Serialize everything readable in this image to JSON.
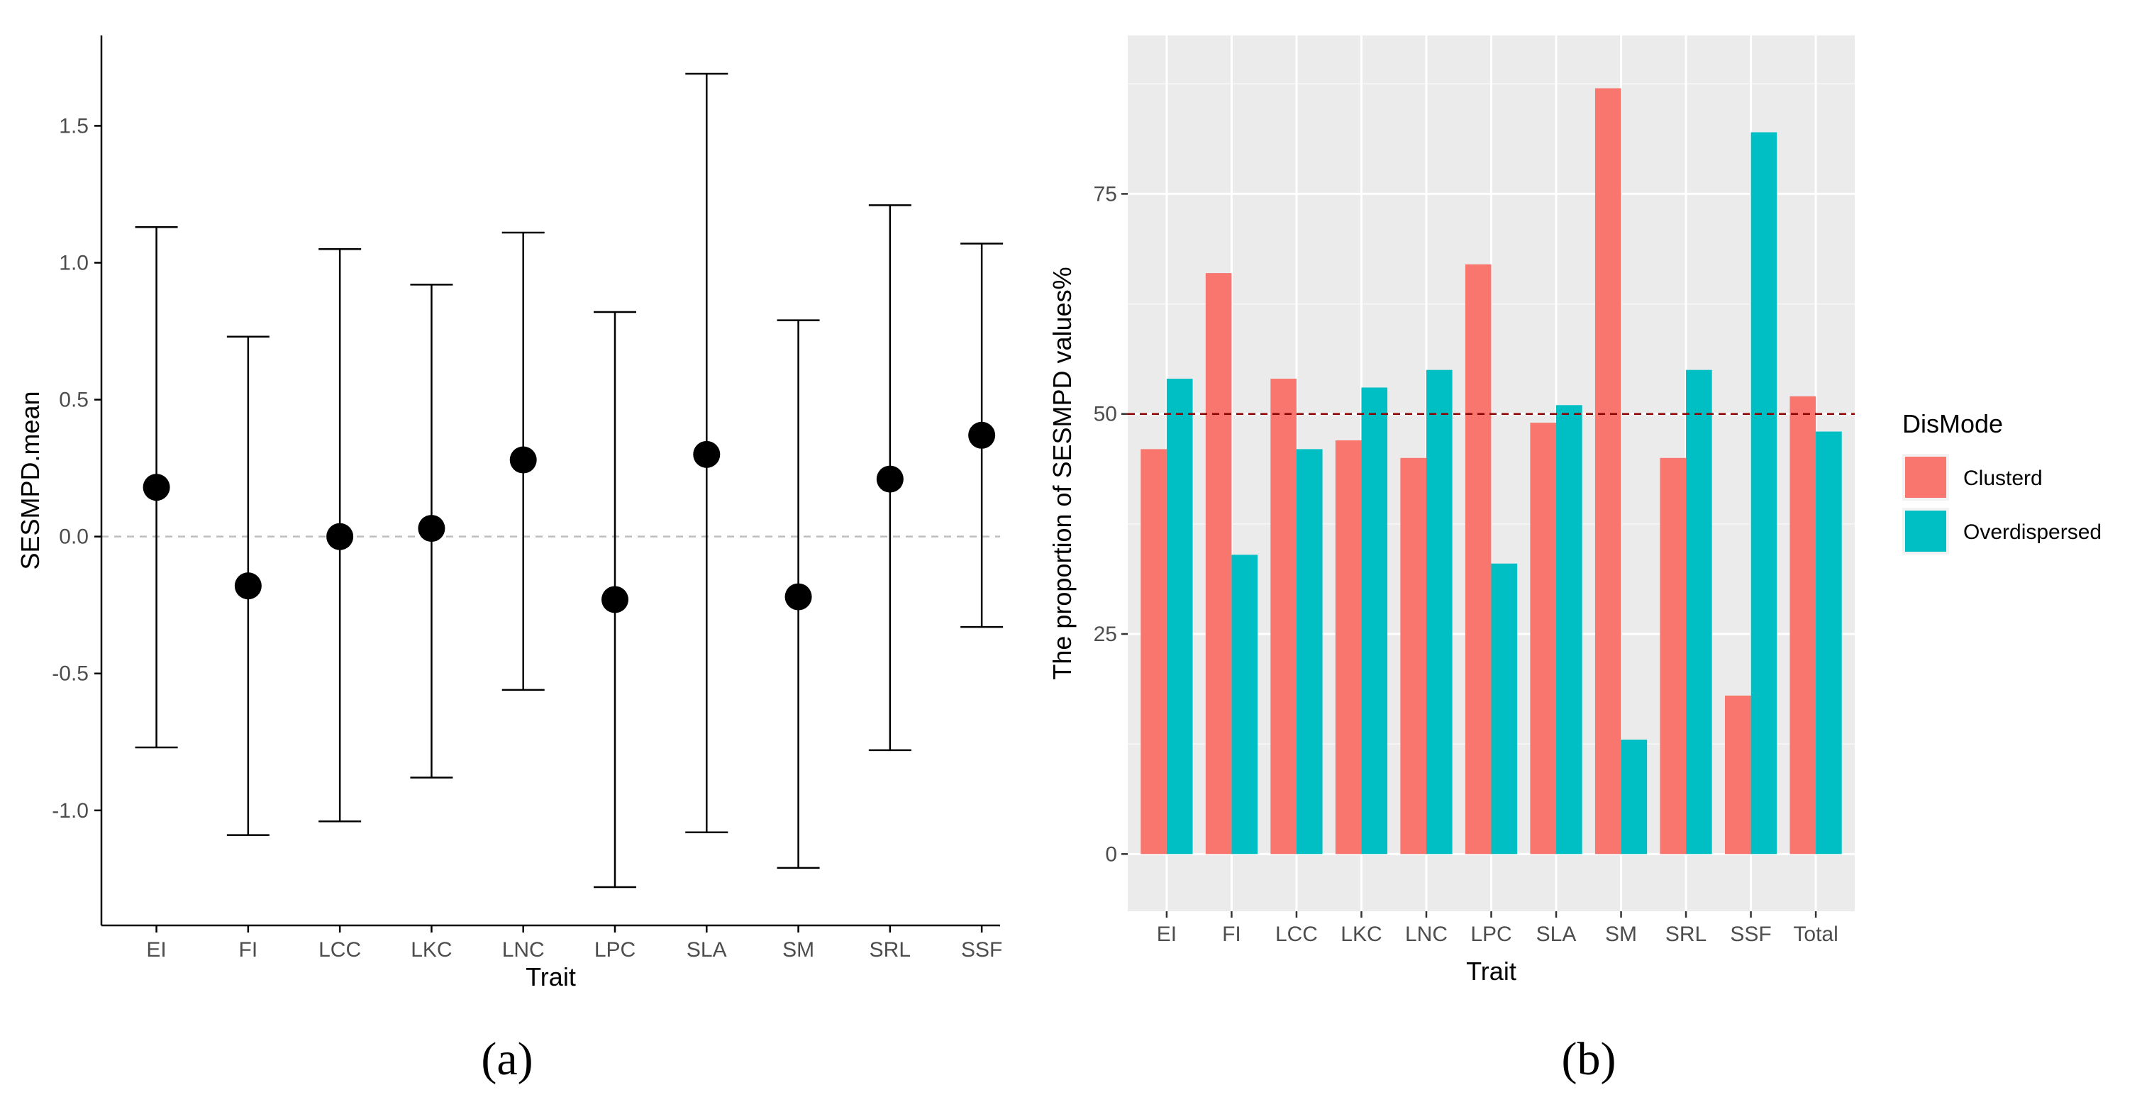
{
  "chart_data": [
    {
      "type": "scatter",
      "panel_label": "(a)",
      "xlabel": "Trait",
      "ylabel": "SESMPD.mean",
      "categories": [
        "EI",
        "FI",
        "LCC",
        "LKC",
        "LNC",
        "LPC",
        "SLA",
        "SM",
        "SRL",
        "SSF"
      ],
      "mean": [
        0.18,
        -0.18,
        0.0,
        0.03,
        0.28,
        -0.23,
        0.3,
        -0.22,
        0.21,
        0.37
      ],
      "lower": [
        -0.77,
        -1.09,
        -1.04,
        -0.88,
        -0.56,
        -1.28,
        -1.08,
        -1.21,
        -0.78,
        -0.33
      ],
      "upper": [
        1.13,
        0.73,
        1.05,
        0.92,
        1.11,
        0.82,
        1.69,
        0.79,
        1.21,
        1.07
      ],
      "ylim": [
        -1.42,
        1.83
      ],
      "y_ticks": [
        -1.0,
        -0.5,
        0.0,
        0.5,
        1.0,
        1.5
      ],
      "y_tick_labels": [
        "-1.0",
        "-0.5",
        "0.0",
        "0.5",
        "1.0",
        "1.5"
      ],
      "reference_line": 0.0,
      "grid": false
    },
    {
      "type": "bar",
      "panel_label": "(b)",
      "xlabel": "Trait",
      "ylabel": "The proportion of SESMPD values%",
      "categories": [
        "EI",
        "FI",
        "LCC",
        "LKC",
        "LNC",
        "LPC",
        "SLA",
        "SM",
        "SRL",
        "SSF",
        "Total"
      ],
      "series": [
        {
          "name": "Clusterd",
          "color": "#F8766D",
          "values": [
            46,
            66,
            54,
            47,
            45,
            67,
            49,
            87,
            45,
            18,
            52
          ]
        },
        {
          "name": "Overdispersed",
          "color": "#00BFC4",
          "values": [
            54,
            34,
            46,
            53,
            55,
            33,
            51,
            13,
            55,
            82,
            48
          ]
        }
      ],
      "ylim": [
        -6.5,
        93
      ],
      "y_ticks": [
        0,
        25,
        50,
        75
      ],
      "y_tick_labels": [
        "0",
        "25",
        "50",
        "75"
      ],
      "reference_line": 50,
      "legend_title": "DisMode",
      "legend_position": "right",
      "grid": true
    }
  ]
}
